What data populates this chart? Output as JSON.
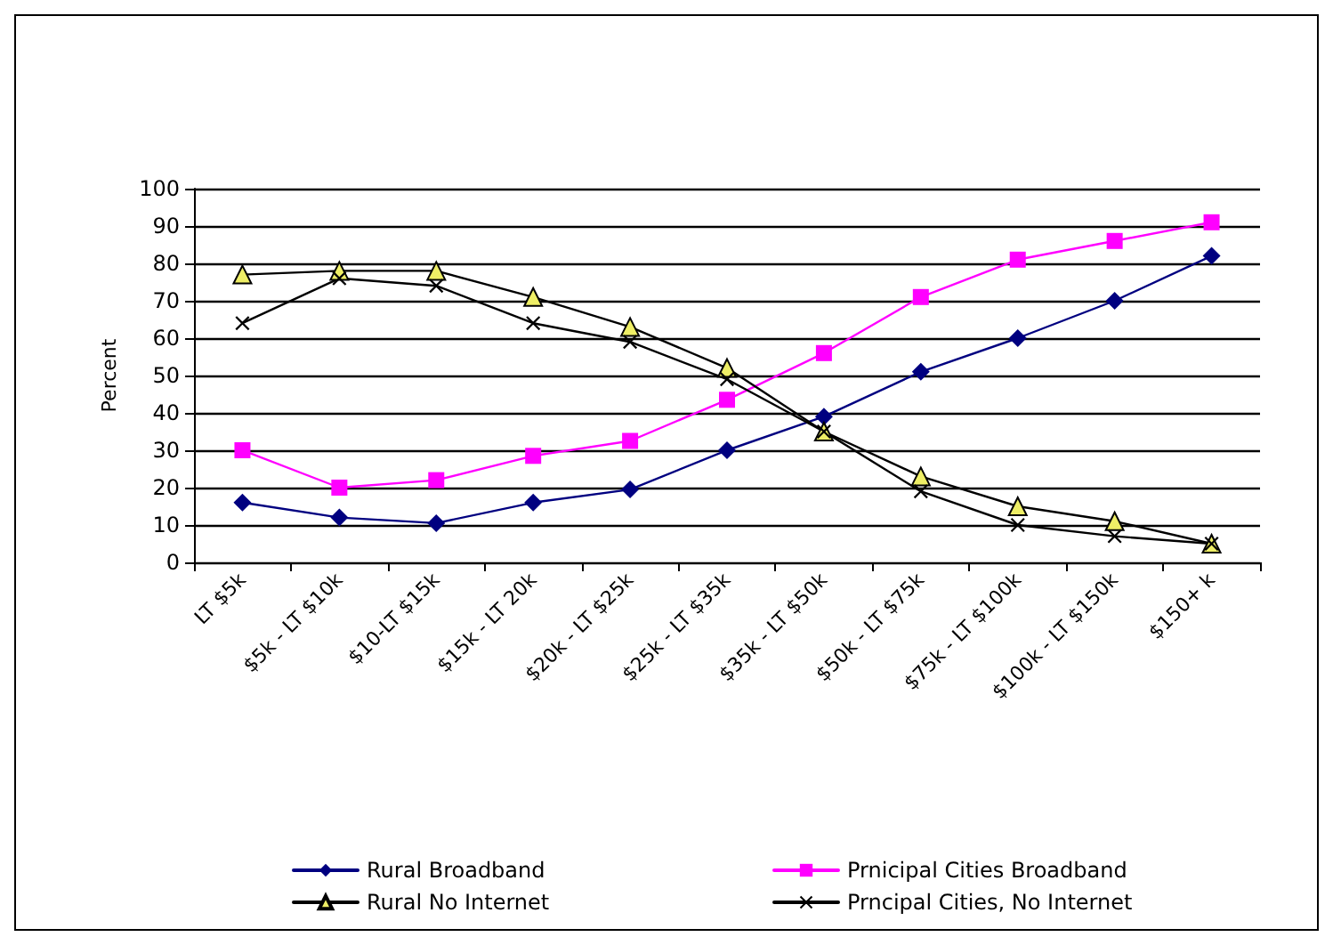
{
  "chart_data": {
    "type": "line",
    "ylabel": "Percent",
    "categories": [
      "LT $5k",
      "$5k - LT $10k",
      "$10-LT $15k",
      "$15k - LT 20k",
      "$20k - LT $25k",
      "$25k - LT $35k",
      "$35k - LT $50k",
      "$50k - LT $75k",
      "$75k - LT $100k",
      "$100k - LT $150k",
      "$150+ k"
    ],
    "series": [
      {
        "name": "Rural Broadband",
        "color": "#000080",
        "marker": "diamond",
        "values": [
          16,
          12,
          10.5,
          16,
          19.5,
          30,
          39,
          51,
          60,
          70,
          82
        ]
      },
      {
        "name": "Prnicipal Cities Broadband",
        "color": "#ff00ff",
        "marker": "square",
        "values": [
          30,
          20,
          22,
          28.5,
          32.5,
          43.5,
          56,
          71,
          81,
          86,
          91
        ]
      },
      {
        "name": "Rural No Internet",
        "color": "#000000",
        "marker": "triangle",
        "values": [
          77,
          78,
          78,
          71,
          63,
          52,
          35,
          23,
          15,
          11,
          5
        ]
      },
      {
        "name": "Prncipal Cities, No Internet",
        "color": "#000000",
        "marker": "cross",
        "values": [
          64,
          76,
          74,
          64,
          59,
          49,
          35,
          19,
          10,
          7,
          5
        ]
      }
    ],
    "ylim": [
      0,
      100
    ],
    "yticks": [
      0,
      10,
      20,
      30,
      40,
      50,
      60,
      70,
      80,
      90,
      100
    ],
    "grid": "y",
    "legend": "bottom"
  }
}
